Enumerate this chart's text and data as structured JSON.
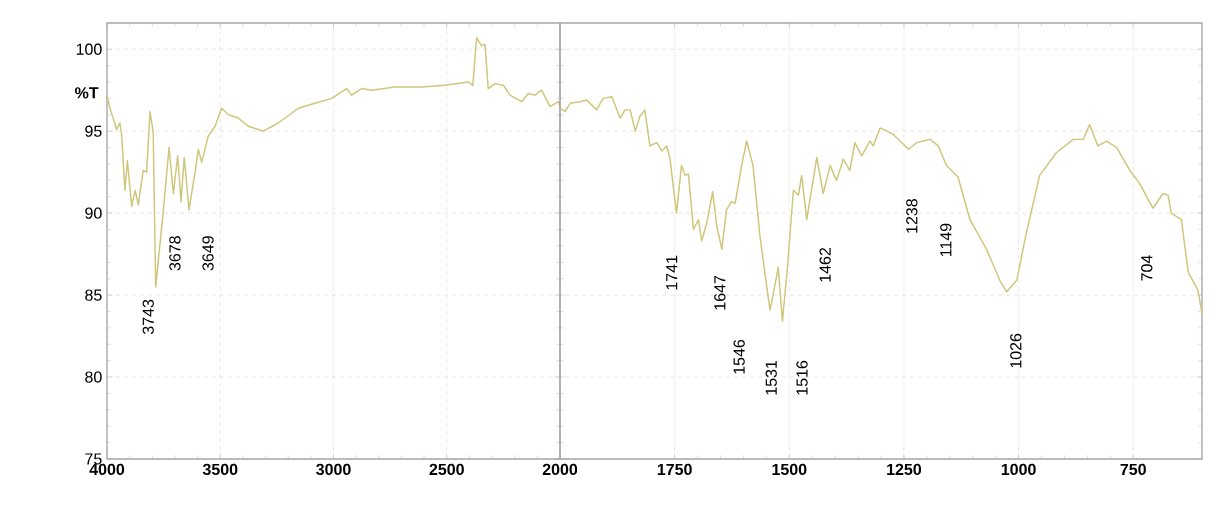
{
  "chart_data": [
    {
      "type": "line",
      "ylabel": "%T",
      "xlim": [
        4000,
        2000
      ],
      "ylim": [
        75,
        101.6
      ],
      "xticks": [
        4000,
        3500,
        3000,
        2500,
        2000
      ],
      "yticks": [
        75,
        80,
        85,
        90,
        95,
        100
      ],
      "grid": true,
      "color": "#cfc67a",
      "x": [
        4000,
        3987,
        3957,
        3943,
        3935,
        3921,
        3910,
        3891,
        3876,
        3862,
        3840,
        3825,
        3810,
        3796,
        3785,
        3751,
        3726,
        3707,
        3688,
        3673,
        3659,
        3638,
        3611,
        3597,
        3582,
        3553,
        3523,
        3494,
        3464,
        3420,
        3376,
        3310,
        3244,
        3155,
        3082,
        3008,
        2942,
        2920,
        2875,
        2831,
        2729,
        2611,
        2508,
        2405,
        2385,
        2368,
        2346,
        2331,
        2317,
        2287,
        2250,
        2221,
        2169,
        2140,
        2111,
        2081,
        2044,
        2007,
        2000
      ],
      "values": [
        97.2,
        96.4,
        95.1,
        95.5,
        94.7,
        91.4,
        93.2,
        90.4,
        91.4,
        90.5,
        92.6,
        92.5,
        96.2,
        94.9,
        85.5,
        90.2,
        94.0,
        91.2,
        93.5,
        90.7,
        93.4,
        90.2,
        92.5,
        93.9,
        93.1,
        94.7,
        95.3,
        96.4,
        96.0,
        95.8,
        95.3,
        95.0,
        95.5,
        96.4,
        96.7,
        97.0,
        97.6,
        97.2,
        97.6,
        97.5,
        97.7,
        97.7,
        97.8,
        98.0,
        97.8,
        100.7,
        100.2,
        100.3,
        97.6,
        97.9,
        97.8,
        97.2,
        96.8,
        97.3,
        97.2,
        97.5,
        96.5,
        96.8,
        96.5
      ],
      "annotations": [
        "3743",
        "3678",
        "3649"
      ]
    },
    {
      "type": "line",
      "xlim": [
        2000,
        600
      ],
      "ylim": [
        75,
        101.6
      ],
      "xticks": [
        1750,
        1500,
        1250,
        1000,
        750
      ],
      "yticks": [
        75,
        80,
        85,
        90,
        95,
        100
      ],
      "tick_labels": "x",
      "grid": true,
      "color": "#cfc67a",
      "x": [
        2000,
        1989,
        1978,
        1956,
        1942,
        1920,
        1906,
        1887,
        1869,
        1858,
        1847,
        1836,
        1826,
        1815,
        1804,
        1789,
        1778,
        1767,
        1760,
        1746,
        1735,
        1727,
        1720,
        1709,
        1698,
        1691,
        1680,
        1667,
        1658,
        1647,
        1637,
        1626,
        1618,
        1604,
        1593,
        1579,
        1564,
        1553,
        1542,
        1536,
        1524,
        1515,
        1504,
        1491,
        1480,
        1473,
        1462,
        1440,
        1426,
        1411,
        1397,
        1382,
        1368,
        1357,
        1342,
        1324,
        1317,
        1302,
        1273,
        1240,
        1222,
        1193,
        1175,
        1157,
        1132,
        1106,
        1070,
        1041,
        1026,
        1004,
        983,
        954,
        917,
        881,
        859,
        845,
        827,
        808,
        786,
        757,
        736,
        707,
        685,
        674,
        667,
        645,
        630,
        609,
        600
      ],
      "values": [
        96.4,
        96.2,
        96.7,
        96.8,
        96.9,
        96.3,
        97.0,
        97.1,
        95.8,
        96.3,
        96.3,
        95.0,
        95.9,
        96.3,
        94.1,
        94.3,
        93.8,
        94.1,
        93.3,
        90.0,
        92.9,
        92.3,
        92.4,
        89.0,
        89.6,
        88.3,
        89.4,
        91.3,
        89.2,
        87.8,
        90.2,
        90.7,
        90.6,
        92.9,
        94.4,
        92.9,
        88.6,
        86.3,
        84.1,
        84.9,
        86.7,
        83.4,
        86.7,
        91.4,
        91.1,
        92.3,
        89.6,
        93.4,
        91.2,
        92.9,
        92.0,
        93.3,
        92.6,
        94.3,
        93.5,
        94.4,
        94.1,
        95.2,
        94.8,
        93.9,
        94.3,
        94.5,
        94.1,
        92.9,
        92.2,
        89.6,
        87.8,
        85.9,
        85.2,
        85.9,
        88.8,
        92.3,
        93.7,
        94.5,
        94.5,
        95.4,
        94.1,
        94.4,
        94.0,
        92.6,
        91.8,
        90.3,
        91.2,
        91.1,
        90.0,
        89.6,
        86.4,
        85.3,
        83.9
      ],
      "annotations": [
        "1741",
        "1647",
        "1546",
        "1531",
        "1516",
        "1462",
        "1238",
        "1149",
        "1026",
        "704"
      ]
    }
  ]
}
